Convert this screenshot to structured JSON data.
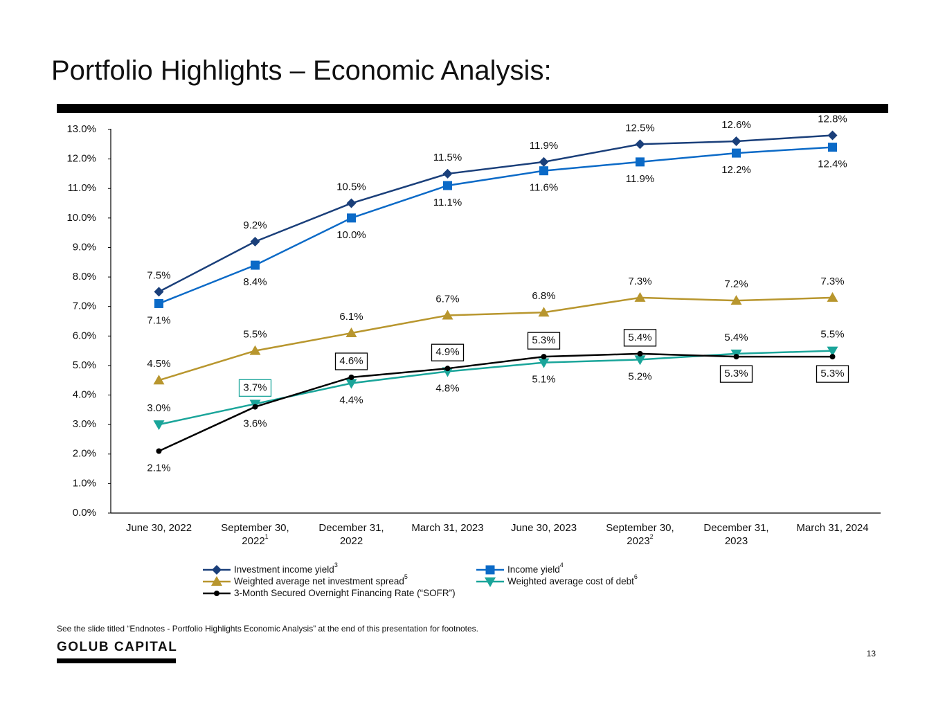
{
  "title": "Portfolio Highlights – Economic Analysis:",
  "footnote_text": "See the slide titled “Endnotes - Portfolio Highlights Economic Analysis” at the end of this presentation for footnotes.",
  "logo": "GOLUB CAPITAL",
  "page_number": "13",
  "chart_data": {
    "type": "line",
    "categories": [
      "June 30, 2022",
      "September 30, 2022",
      "December 31, 2022",
      "March 31, 2023",
      "June 30, 2023",
      "September 30, 2023",
      "December 31, 2023",
      "March 31, 2024"
    ],
    "category_footnotes": [
      null,
      "1",
      null,
      null,
      null,
      "2",
      null,
      null
    ],
    "ylim": [
      0,
      13
    ],
    "yticks": [
      {
        "value": 0,
        "label": "0.0%"
      },
      {
        "value": 1,
        "label": "1.0%"
      },
      {
        "value": 2,
        "label": "2.0%"
      },
      {
        "value": 3,
        "label": "3.0%"
      },
      {
        "value": 4,
        "label": "4.0%"
      },
      {
        "value": 5,
        "label": "5.0%"
      },
      {
        "value": 6,
        "label": "6.0%"
      },
      {
        "value": 7,
        "label": "7.0%"
      },
      {
        "value": 8,
        "label": "8.0%"
      },
      {
        "value": 9,
        "label": "9.0%"
      },
      {
        "value": 10,
        "label": "10.0%"
      },
      {
        "value": 11,
        "label": "11.0%"
      },
      {
        "value": 12,
        "label": "12.0%"
      },
      {
        "value": 13,
        "label": "13.0%"
      }
    ],
    "grid": false,
    "series": [
      {
        "name": "Investment income yield",
        "footnote": "3",
        "color": "#1a3f7a",
        "marker": "diamond",
        "values": [
          7.5,
          9.2,
          10.5,
          11.5,
          11.9,
          12.5,
          12.6,
          12.8
        ],
        "value_labels": [
          "7.5%",
          "9.2%",
          "10.5%",
          "11.5%",
          "11.9%",
          "12.5%",
          "12.6%",
          "12.8%"
        ]
      },
      {
        "name": "Income yield",
        "footnote": "4",
        "color": "#0b6ac7",
        "marker": "square",
        "values": [
          7.1,
          8.4,
          10.0,
          11.1,
          11.6,
          11.9,
          12.2,
          12.4
        ],
        "value_labels": [
          "7.1%",
          "8.4%",
          "10.0%",
          "11.1%",
          "11.6%",
          "11.9%",
          "12.2%",
          "12.4%"
        ]
      },
      {
        "name": "Weighted average net investment spread",
        "footnote": "5",
        "color": "#b8962e",
        "marker": "triangle-up",
        "values": [
          4.5,
          5.5,
          6.1,
          6.7,
          6.8,
          7.3,
          7.2,
          7.3
        ],
        "value_labels": [
          "4.5%",
          "5.5%",
          "6.1%",
          "6.7%",
          "6.8%",
          "7.3%",
          "7.2%",
          "7.3%"
        ]
      },
      {
        "name": "Weighted average cost of debt",
        "footnote": "6",
        "color": "#1aa59a",
        "marker": "triangle-down",
        "values": [
          3.0,
          3.7,
          4.4,
          4.8,
          5.1,
          5.2,
          5.4,
          5.5
        ],
        "value_labels": [
          "3.0%",
          "3.7%",
          "4.4%",
          "4.8%",
          "5.1%",
          "5.2%",
          "5.4%",
          "5.5%"
        ]
      },
      {
        "name": "3-Month Secured Overnight Financing Rate (“SOFR”)",
        "color": "#000000",
        "marker": "circle",
        "values": [
          2.1,
          3.6,
          4.6,
          4.9,
          5.3,
          5.4,
          5.3,
          5.3
        ],
        "value_labels": [
          "2.1%",
          "3.6%",
          "4.6%",
          "4.9%",
          "5.3%",
          "5.4%",
          "5.3%",
          "5.3%"
        ]
      }
    ]
  }
}
